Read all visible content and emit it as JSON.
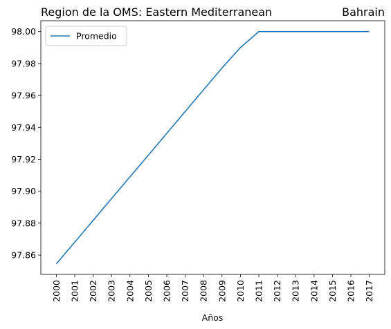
{
  "chart_data": {
    "type": "line",
    "title_left": "Region de la OMS: Eastern Mediterranean",
    "title_right": "Bahrain",
    "xlabel": "Años",
    "ylabel": "",
    "x": [
      "2000",
      "2001",
      "2002",
      "2003",
      "2004",
      "2005",
      "2006",
      "2007",
      "2008",
      "2009",
      "2010",
      "2011",
      "2012",
      "2013",
      "2014",
      "2015",
      "2016",
      "2017"
    ],
    "series": [
      {
        "name": "Promedio",
        "color": "#1f77b4",
        "values": [
          97.8545,
          97.8681,
          97.8817,
          97.8954,
          97.909,
          97.9226,
          97.9363,
          97.9499,
          97.9636,
          97.9772,
          97.99,
          98.0,
          98.0,
          98.0,
          98.0,
          98.0,
          98.0,
          98.0
        ]
      }
    ],
    "yticks": [
      "97.86",
      "97.88",
      "97.90",
      "97.92",
      "97.94",
      "97.96",
      "97.98",
      "98.00"
    ],
    "ylim": [
      97.8479,
      98.0068
    ],
    "grid": false,
    "legend_position": "upper left"
  }
}
